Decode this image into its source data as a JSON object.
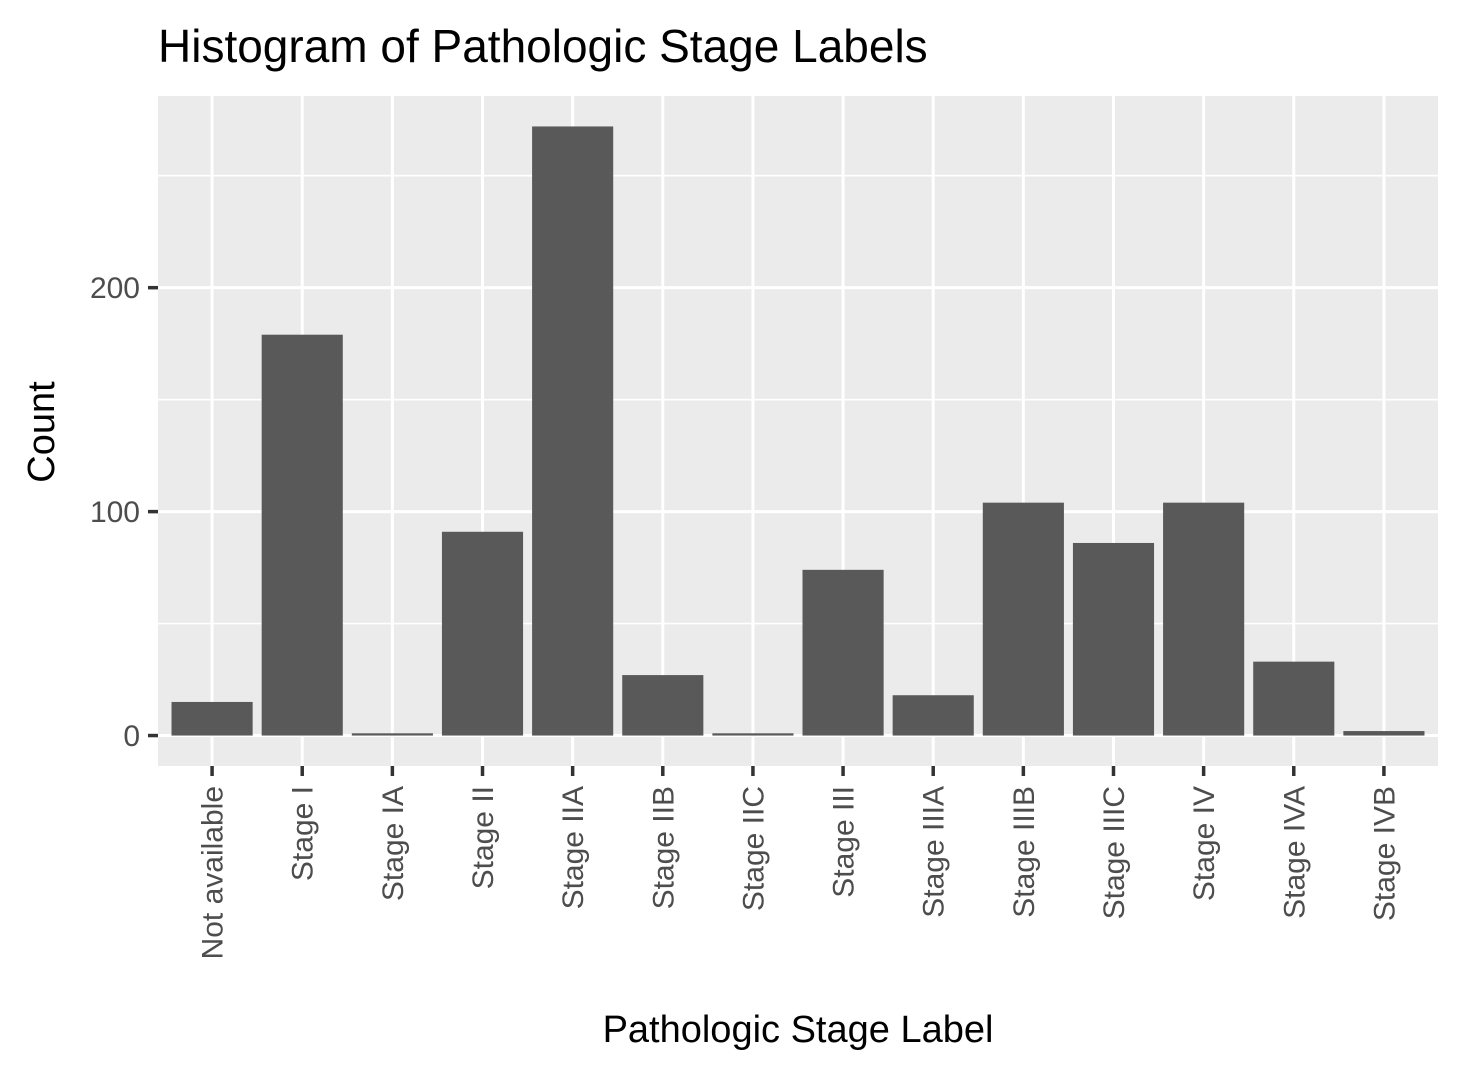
{
  "chart_data": {
    "type": "bar",
    "title": "Histogram of Pathologic Stage Labels",
    "xlabel": "Pathologic Stage Label",
    "ylabel": "Count",
    "categories": [
      "Not available",
      "Stage I",
      "Stage IA",
      "Stage II",
      "Stage IIA",
      "Stage IIB",
      "Stage IIC",
      "Stage III",
      "Stage IIIA",
      "Stage IIIB",
      "Stage IIIC",
      "Stage IV",
      "Stage IVA",
      "Stage IVB"
    ],
    "values": [
      15,
      179,
      1,
      91,
      272,
      27,
      1,
      74,
      18,
      104,
      86,
      104,
      33,
      2
    ],
    "ylim": [
      -13.6,
      285.6
    ],
    "yticks": [
      0,
      100,
      200
    ],
    "grid": true,
    "legend": "none",
    "colors": {
      "bar": "#595959",
      "panel": "#ebebeb",
      "grid": "#ffffff"
    }
  }
}
